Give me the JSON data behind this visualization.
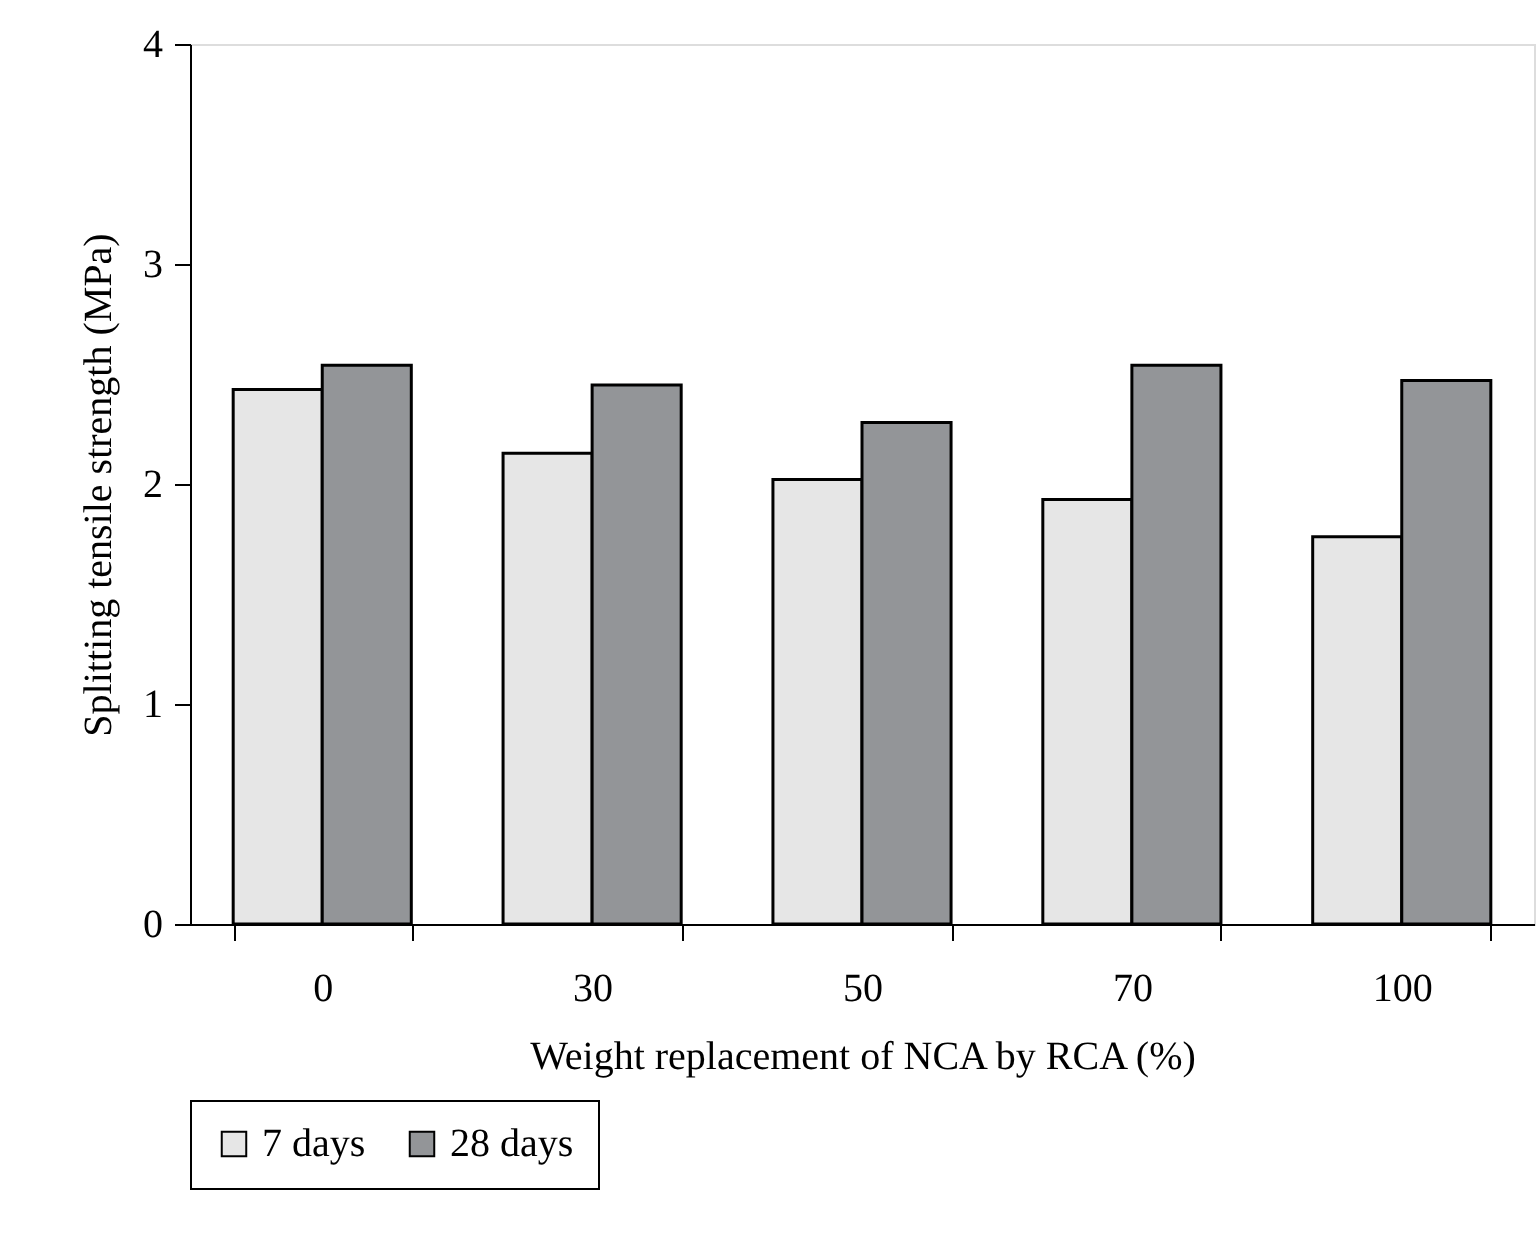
{
  "chart_data": {
    "type": "bar",
    "xlabel": "Weight replacement of NCA by RCA (%)",
    "ylabel": "Splitting tensile strength (MPa)",
    "categories": [
      "0",
      "30",
      "50",
      "70",
      "100"
    ],
    "series": [
      {
        "name": "7 days",
        "color": "#e6e6e6",
        "values": [
          2.43,
          2.14,
          2.02,
          1.93,
          1.76
        ]
      },
      {
        "name": "28 days",
        "color": "#939598",
        "values": [
          2.54,
          2.45,
          2.28,
          2.54,
          2.47
        ]
      }
    ],
    "ylim": [
      0,
      4
    ],
    "yticks": [
      0,
      1,
      2,
      3,
      4
    ],
    "grid": false,
    "legend": "bottom"
  }
}
